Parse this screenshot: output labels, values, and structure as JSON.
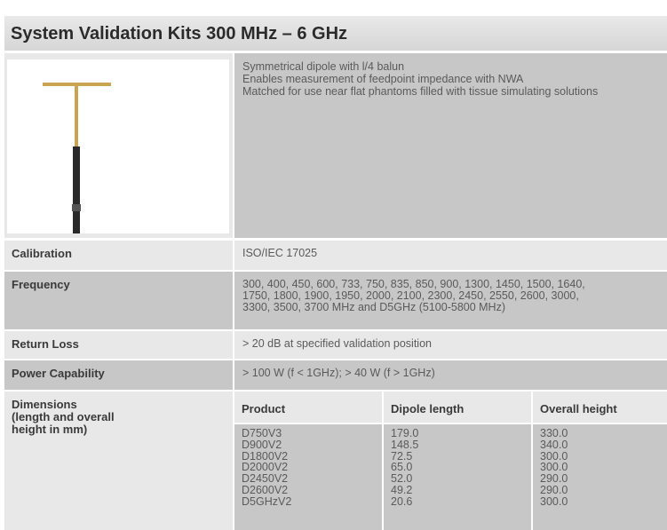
{
  "header": {
    "title": "System Validation Kits 300 MHz – 6 GHz"
  },
  "description": [
    "Symmetrical dipole with l/4 balun",
    "Enables measurement of feedpoint impedance with NWA",
    "Matched for use near flat phantoms filled with tissue simulating solutions"
  ],
  "specs": [
    {
      "label": "Calibration",
      "lines": [
        "ISO/IEC 17025"
      ]
    },
    {
      "label": "Frequency",
      "lines": [
        "300, 400, 450, 600, 733, 750, 835, 850, 900, 1300, 1450, 1500, 1640,",
        "1750, 1800, 1900, 1950, 2000, 2100, 2300, 2450, 2550, 2600, 3000,",
        "3300, 3500, 3700 MHz and D5GHz (5100-5800 MHz)"
      ]
    },
    {
      "label": "Return Loss",
      "lines": [
        "> 20 dB at specified validation position"
      ]
    },
    {
      "label": "Power Capability",
      "lines": [
        "> 100 W (f < 1GHz); > 40 W (f > 1GHz)"
      ]
    }
  ],
  "dimensions": {
    "label": [
      "Dimensions",
      "(length and overall",
      "height in mm)"
    ],
    "table": {
      "header": [
        "Product",
        "Dipole length",
        "Overall height"
      ],
      "rows": [
        [
          "D750V3",
          "179.0",
          "330.0"
        ],
        [
          "D900V2",
          "148.5",
          "340.0"
        ],
        [
          "D1800V2",
          "72.5",
          "300.0"
        ],
        [
          "D2000V2",
          "65.0",
          "300.0"
        ],
        [
          "D2450V2",
          "52.0",
          "290.0"
        ],
        [
          "D2600V2",
          "49.2",
          "290.0"
        ],
        [
          "D5GHzV2",
          "20.6",
          "300.0"
        ]
      ]
    }
  }
}
